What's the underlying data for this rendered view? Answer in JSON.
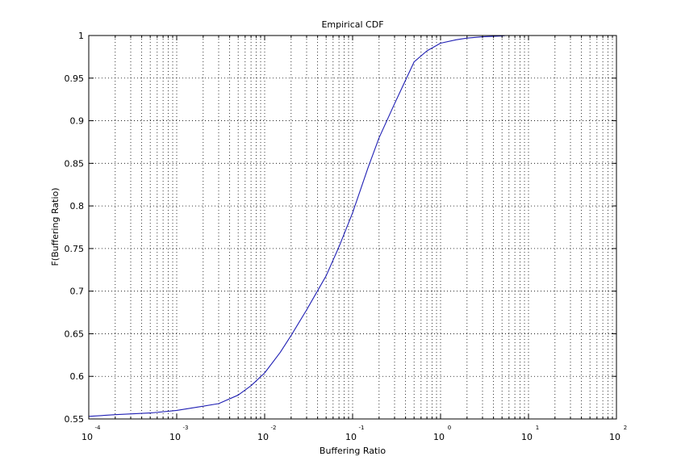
{
  "chart_data": {
    "type": "line",
    "title": "Empirical CDF",
    "xlabel": "Buffering Ratio",
    "ylabel": "F(Buffering Ratio)",
    "x_scale": "log",
    "xlim": [
      0.0001,
      100
    ],
    "ylim": [
      0.55,
      1
    ],
    "grid": true,
    "grid_style": "dotted",
    "x_ticks": [
      {
        "base": "10",
        "exp": "-4",
        "value": 0.0001
      },
      {
        "base": "10",
        "exp": "-3",
        "value": 0.001
      },
      {
        "base": "10",
        "exp": "-2",
        "value": 0.01
      },
      {
        "base": "10",
        "exp": "-1",
        "value": 0.1
      },
      {
        "base": "10",
        "exp": "0",
        "value": 1
      },
      {
        "base": "10",
        "exp": "1",
        "value": 10
      },
      {
        "base": "10",
        "exp": "2",
        "value": 100
      }
    ],
    "y_ticks": [
      {
        "label": "0.55",
        "value": 0.55
      },
      {
        "label": "0.6",
        "value": 0.6
      },
      {
        "label": "0.65",
        "value": 0.65
      },
      {
        "label": "0.7",
        "value": 0.7
      },
      {
        "label": "0.75",
        "value": 0.75
      },
      {
        "label": "0.8",
        "value": 0.8
      },
      {
        "label": "0.85",
        "value": 0.85
      },
      {
        "label": "0.9",
        "value": 0.9
      },
      {
        "label": "0.95",
        "value": 0.95
      },
      {
        "label": "1",
        "value": 1
      }
    ],
    "series": [
      {
        "color": "#1f1fb4",
        "x": [
          0.0001,
          0.0002,
          0.0005,
          0.001,
          0.002,
          0.003,
          0.005,
          0.007,
          0.01,
          0.015,
          0.02,
          0.03,
          0.05,
          0.07,
          0.1,
          0.15,
          0.2,
          0.3,
          0.5,
          0.7,
          1,
          1.5,
          2,
          3,
          5,
          5.5
        ],
        "y": [
          0.553,
          0.555,
          0.557,
          0.56,
          0.565,
          0.568,
          0.578,
          0.589,
          0.604,
          0.628,
          0.648,
          0.678,
          0.718,
          0.752,
          0.792,
          0.845,
          0.88,
          0.92,
          0.969,
          0.982,
          0.991,
          0.995,
          0.997,
          0.9985,
          0.9995,
          1.0
        ]
      }
    ]
  }
}
